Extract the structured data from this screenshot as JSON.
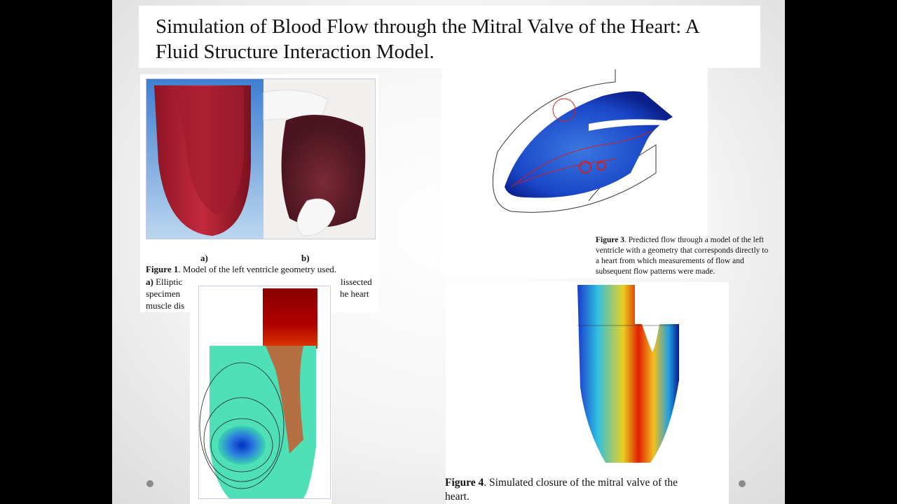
{
  "title": {
    "lines": [
      "Simulation of Blood Flow through the Mitral Valve of the Heart: A",
      "Fluid Structure Interaction Model."
    ]
  },
  "figure1": {
    "panel_labels": [
      "a)",
      "b)"
    ],
    "caption_label": "Figure 1",
    "caption_lines": [
      ". Model of the left ventricle geometry used.",
      "a)",
      "Elliptic",
      "lissected",
      "specimen",
      "he heart",
      "muscle dis"
    ]
  },
  "figure3": {
    "caption_label": "Figure 3",
    "caption_lines": [
      ". Predicted flow through a model of the left",
      "ventricle with a geometry that corresponds directly to",
      "a heart from which measurements of flow and",
      "subsequent flow patterns were made."
    ]
  },
  "figure4": {
    "caption_label": "Figure 4",
    "caption_lines": [
      ". Simulated closure of the mitral valve of the",
      "heart."
    ]
  }
}
